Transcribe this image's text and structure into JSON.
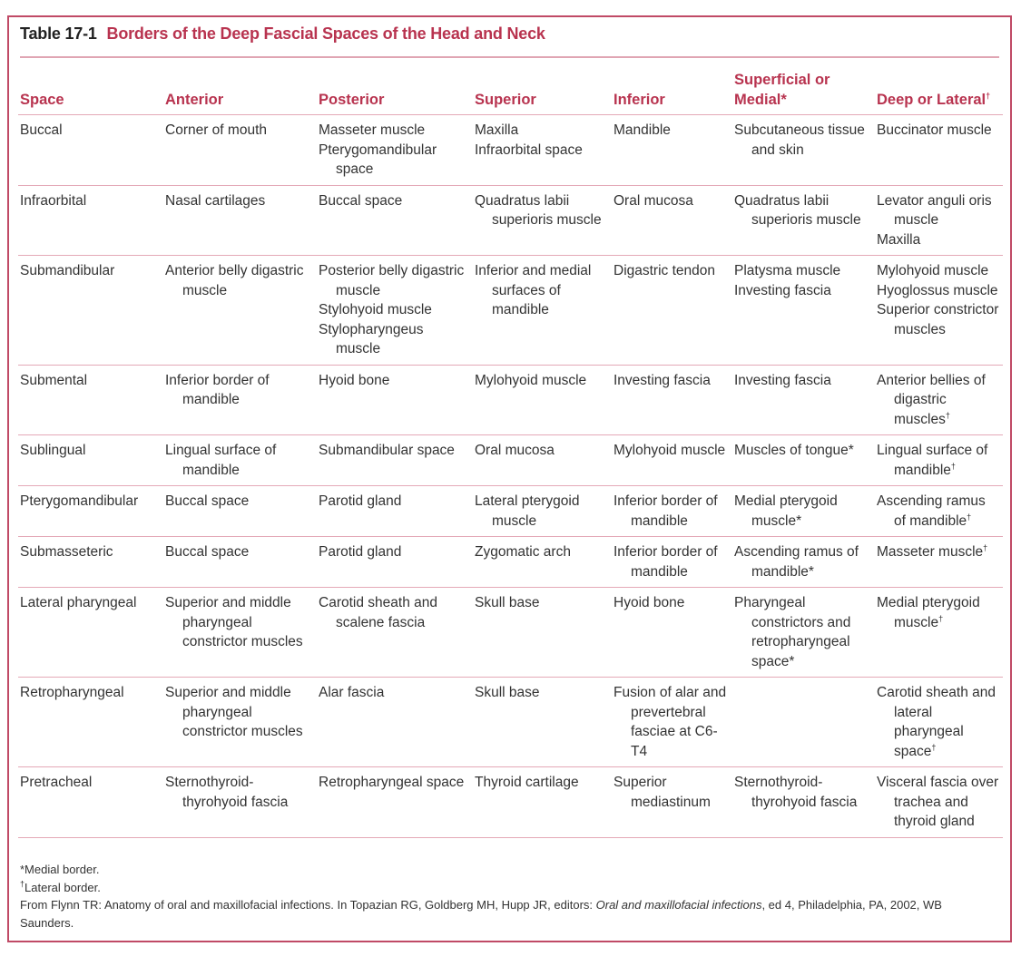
{
  "title": {
    "number": "Table 17-1",
    "text": "Borders of the Deep Fascial Spaces of the Head and Neck"
  },
  "accent_color": "#b8334f",
  "columns": [
    "Space",
    "Anterior",
    "Posterior",
    "Superior",
    "Inferior",
    "Superficial or Medial*",
    "Deep or Lateral†"
  ],
  "rows": [
    [
      [
        "Buccal"
      ],
      [
        "Corner of mouth"
      ],
      [
        "Masseter muscle",
        "Pterygomandibular space"
      ],
      [
        "Maxilla",
        "Infraorbital space"
      ],
      [
        "Mandible"
      ],
      [
        "Subcutaneous tissue and skin"
      ],
      [
        "Buccinator muscle"
      ]
    ],
    [
      [
        "Infraorbital"
      ],
      [
        "Nasal cartilages"
      ],
      [
        "Buccal space"
      ],
      [
        "Quadratus labii superioris muscle"
      ],
      [
        "Oral mucosa"
      ],
      [
        "Quadratus labii superioris muscle"
      ],
      [
        "Levator anguli oris muscle",
        "Maxilla"
      ]
    ],
    [
      [
        "Submandibular"
      ],
      [
        "Anterior belly digastric muscle"
      ],
      [
        "Posterior belly digastric muscle",
        "Stylohyoid muscle",
        "Stylopharyngeus muscle"
      ],
      [
        "Inferior and medial surfaces of mandible"
      ],
      [
        "Digastric tendon"
      ],
      [
        "Platysma muscle",
        "Investing fascia"
      ],
      [
        "Mylohyoid muscle",
        "Hyoglossus muscle",
        "Superior constrictor muscles"
      ]
    ],
    [
      [
        "Submental"
      ],
      [
        "Inferior border of mandible"
      ],
      [
        "Hyoid bone"
      ],
      [
        "Mylohyoid muscle"
      ],
      [
        "Investing fascia"
      ],
      [
        "Investing fascia"
      ],
      [
        "Anterior bellies of digastric muscles†"
      ]
    ],
    [
      [
        "Sublingual"
      ],
      [
        "Lingual surface of mandible"
      ],
      [
        "Submandibular space"
      ],
      [
        "Oral mucosa"
      ],
      [
        "Mylohyoid muscle"
      ],
      [
        "Muscles of tongue*"
      ],
      [
        "Lingual surface of mandible†"
      ]
    ],
    [
      [
        "Pterygomandibular"
      ],
      [
        "Buccal space"
      ],
      [
        "Parotid gland"
      ],
      [
        "Lateral pterygoid muscle"
      ],
      [
        "Inferior border of mandible"
      ],
      [
        "Medial pterygoid muscle*"
      ],
      [
        "Ascending ramus of mandible†"
      ]
    ],
    [
      [
        "Submasseteric"
      ],
      [
        "Buccal space"
      ],
      [
        "Parotid gland"
      ],
      [
        "Zygomatic arch"
      ],
      [
        "Inferior border of mandible"
      ],
      [
        "Ascending ramus of mandible*"
      ],
      [
        "Masseter muscle†"
      ]
    ],
    [
      [
        "Lateral pharyngeal"
      ],
      [
        "Superior and middle pharyngeal constrictor muscles"
      ],
      [
        "Carotid sheath and scalene fascia"
      ],
      [
        "Skull base"
      ],
      [
        "Hyoid bone"
      ],
      [
        "Pharyngeal constrictors and retropharyngeal space*"
      ],
      [
        "Medial pterygoid muscle†"
      ]
    ],
    [
      [
        "Retropharyngeal"
      ],
      [
        "Superior and middle pharyngeal constrictor muscles"
      ],
      [
        "Alar fascia"
      ],
      [
        "Skull base"
      ],
      [
        "Fusion of alar and prevertebral fasciae at C6-T4"
      ],
      [],
      [
        "Carotid sheath and lateral pharyngeal space†"
      ]
    ],
    [
      [
        "Pretracheal"
      ],
      [
        "Sternothyroid-thyrohyoid fascia"
      ],
      [
        "Retropharyngeal space"
      ],
      [
        "Thyroid cartilage"
      ],
      [
        "Superior mediastinum"
      ],
      [
        "Sternothyroid-thyrohyoid fascia"
      ],
      [
        "Visceral fascia over trachea and thyroid gland"
      ]
    ]
  ],
  "footnotes": {
    "medial": "*Medial border.",
    "lateral": "†Lateral border.",
    "source_pre": "From Flynn TR: Anatomy of oral and maxillofacial infections. In Topazian RG, Goldberg MH, Hupp JR, editors: ",
    "source_italic": "Oral and maxillofacial infections",
    "source_post": ", ed 4, Philadelphia, PA, 2002, WB Saunders."
  }
}
